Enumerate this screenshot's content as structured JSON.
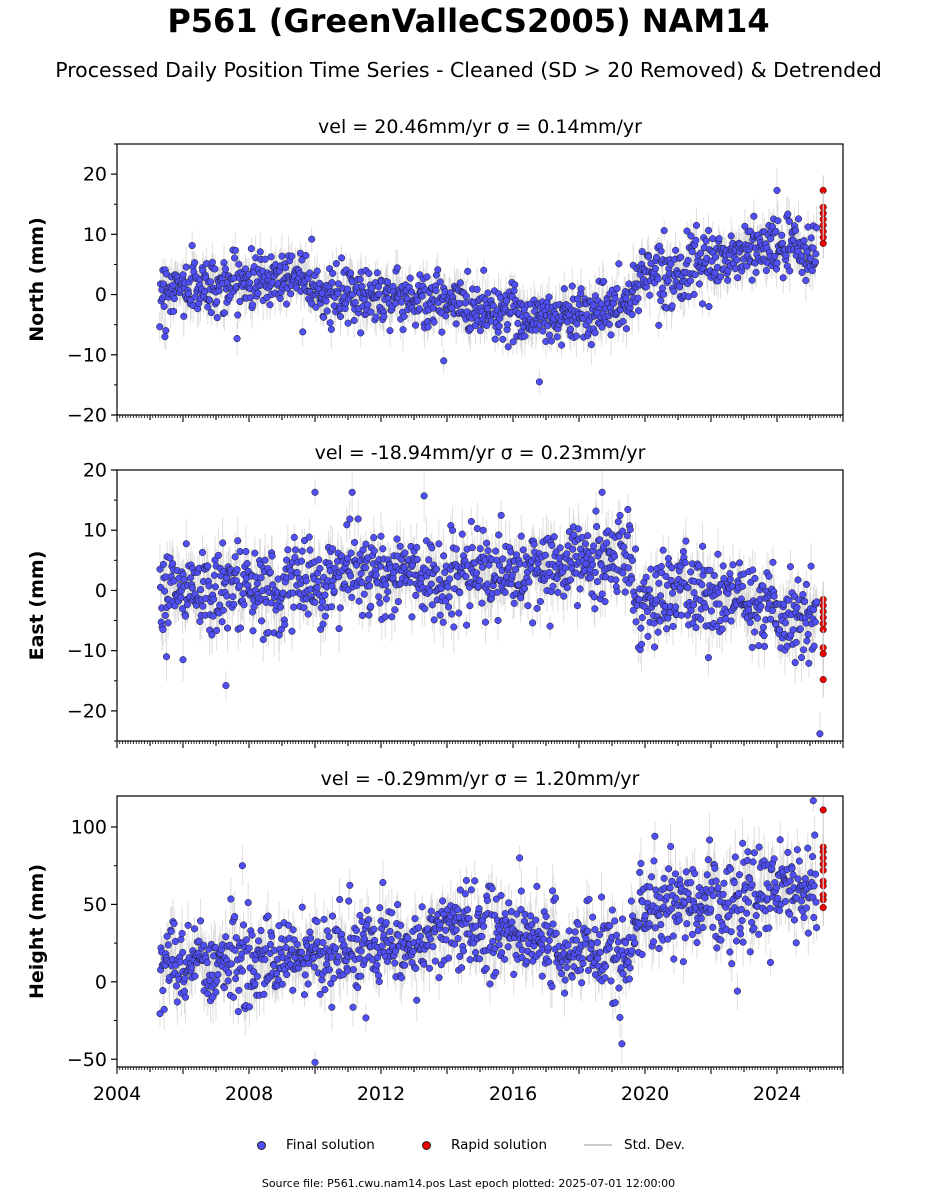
{
  "title": "P561 (GreenValleCS2005) NAM14",
  "subtitle": "Processed Daily Position Time Series - Cleaned (SD > 20 Removed) & Detrended",
  "legend": {
    "final": "Final solution",
    "rapid": "Rapid solution",
    "std": "Std. Dev."
  },
  "footer": "Source file: P561.cwu.nam14.pos  Last epoch plotted: 2025-07-01 12:00:00",
  "colors": {
    "final": "#4f4ff5",
    "rapid": "#ee0000",
    "std": "#c8c8c8"
  },
  "chart_data": [
    {
      "type": "scatter",
      "component": "North",
      "title": "vel = 20.46mm/yr   σ = 0.14mm/yr",
      "ylabel": "North (mm)",
      "xlim": [
        2004.0,
        2026.0
      ],
      "ylim": [
        -20,
        25
      ],
      "yticks": [
        -20,
        -10,
        0,
        10,
        20
      ],
      "ytick_labels": [
        "−20",
        "−10",
        "0",
        "10",
        "20"
      ],
      "grid": false,
      "final_solution_trend": [
        {
          "x": 2005.3,
          "y": 1.0
        },
        {
          "x": 2007.0,
          "y": 1.5
        },
        {
          "x": 2009.0,
          "y": 3.0
        },
        {
          "x": 2009.7,
          "y": 3.5
        },
        {
          "x": 2010.3,
          "y": -0.5
        },
        {
          "x": 2012.0,
          "y": 0.0
        },
        {
          "x": 2014.0,
          "y": -1.5
        },
        {
          "x": 2016.0,
          "y": -3.0
        },
        {
          "x": 2017.0,
          "y": -4.0
        },
        {
          "x": 2018.0,
          "y": -3.0
        },
        {
          "x": 2019.5,
          "y": -2.0
        },
        {
          "x": 2019.9,
          "y": 4.0
        },
        {
          "x": 2021.0,
          "y": 3.5
        },
        {
          "x": 2022.0,
          "y": 5.0
        },
        {
          "x": 2023.0,
          "y": 7.0
        },
        {
          "x": 2024.0,
          "y": 8.0
        },
        {
          "x": 2025.2,
          "y": 7.0
        }
      ],
      "final_solution_scatter_sd": 2.3,
      "std_dev_mm": 2.5,
      "outliers": [
        {
          "x": 2005.45,
          "y": -7.0
        },
        {
          "x": 2013.9,
          "y": -11.0
        },
        {
          "x": 2016.8,
          "y": -14.5
        },
        {
          "x": 2024.0,
          "y": 17.3
        },
        {
          "x": 2009.9,
          "y": 9.2
        },
        {
          "x": 2023.3,
          "y": 13.0
        }
      ],
      "rapid_solution": [
        {
          "x": 2025.4,
          "y": 17.3
        },
        {
          "x": 2025.4,
          "y": 14.5
        },
        {
          "x": 2025.4,
          "y": 13.5
        },
        {
          "x": 2025.4,
          "y": 12.5
        },
        {
          "x": 2025.4,
          "y": 11.5
        },
        {
          "x": 2025.4,
          "y": 10.5
        },
        {
          "x": 2025.4,
          "y": 9.5
        },
        {
          "x": 2025.4,
          "y": 8.5
        }
      ]
    },
    {
      "type": "scatter",
      "component": "East",
      "title": "vel = -18.94mm/yr   σ = 0.23mm/yr",
      "ylabel": "East (mm)",
      "xlim": [
        2004.0,
        2026.0
      ],
      "ylim": [
        -25,
        20
      ],
      "yticks": [
        -20,
        -10,
        0,
        10,
        20
      ],
      "ytick_labels": [
        "−20",
        "−10",
        "0",
        "10",
        "20"
      ],
      "grid": false,
      "final_solution_trend": [
        {
          "x": 2005.3,
          "y": 1.0
        },
        {
          "x": 2007.0,
          "y": 0.5
        },
        {
          "x": 2008.5,
          "y": -1.0
        },
        {
          "x": 2010.0,
          "y": 2.0
        },
        {
          "x": 2012.0,
          "y": 3.0
        },
        {
          "x": 2014.0,
          "y": 2.0
        },
        {
          "x": 2016.0,
          "y": 2.5
        },
        {
          "x": 2018.0,
          "y": 4.0
        },
        {
          "x": 2019.5,
          "y": 6.0
        },
        {
          "x": 2019.8,
          "y": -2.0
        },
        {
          "x": 2021.0,
          "y": -0.5
        },
        {
          "x": 2022.5,
          "y": -1.0
        },
        {
          "x": 2024.0,
          "y": -4.0
        },
        {
          "x": 2025.2,
          "y": -6.0
        }
      ],
      "final_solution_scatter_sd": 3.5,
      "std_dev_mm": 3.0,
      "outliers": [
        {
          "x": 2010.0,
          "y": 16.3
        },
        {
          "x": 2018.7,
          "y": 16.3
        },
        {
          "x": 2025.3,
          "y": -23.8
        },
        {
          "x": 2007.3,
          "y": -15.8
        },
        {
          "x": 2006.0,
          "y": -11.5
        },
        {
          "x": 2005.5,
          "y": -11.0
        }
      ],
      "rapid_solution": [
        {
          "x": 2025.4,
          "y": -1.5
        },
        {
          "x": 2025.4,
          "y": -2.5
        },
        {
          "x": 2025.4,
          "y": -3.5
        },
        {
          "x": 2025.4,
          "y": -4.5
        },
        {
          "x": 2025.4,
          "y": -5.5
        },
        {
          "x": 2025.4,
          "y": -6.5
        },
        {
          "x": 2025.4,
          "y": -9.5
        },
        {
          "x": 2025.4,
          "y": -10.5
        },
        {
          "x": 2025.4,
          "y": -14.8
        }
      ]
    },
    {
      "type": "scatter",
      "component": "Height",
      "title": "vel = -0.29mm/yr   σ = 1.20mm/yr",
      "ylabel": "Height (mm)",
      "xlim": [
        2004.0,
        2026.0
      ],
      "ylim": [
        -55,
        120
      ],
      "yticks": [
        -50,
        0,
        50,
        100
      ],
      "ytick_labels": [
        "−50",
        "0",
        "50",
        "100"
      ],
      "grid": false,
      "xticks": [
        2004,
        2008,
        2012,
        2016,
        2020,
        2024
      ],
      "xtick_labels": [
        "2004",
        "2008",
        "2012",
        "2016",
        "2020",
        "2024"
      ],
      "final_solution_trend": [
        {
          "x": 2005.3,
          "y": 10
        },
        {
          "x": 2007.0,
          "y": 12
        },
        {
          "x": 2009.0,
          "y": 15
        },
        {
          "x": 2011.0,
          "y": 18
        },
        {
          "x": 2013.0,
          "y": 25
        },
        {
          "x": 2014.5,
          "y": 38
        },
        {
          "x": 2016.0,
          "y": 28
        },
        {
          "x": 2018.0,
          "y": 22
        },
        {
          "x": 2019.5,
          "y": 15
        },
        {
          "x": 2019.9,
          "y": 45
        },
        {
          "x": 2021.5,
          "y": 50
        },
        {
          "x": 2023.0,
          "y": 55
        },
        {
          "x": 2024.5,
          "y": 62
        },
        {
          "x": 2025.2,
          "y": 65
        }
      ],
      "final_solution_scatter_sd": 14,
      "std_dev_mm": 12,
      "outliers": [
        {
          "x": 2007.8,
          "y": 75
        },
        {
          "x": 2010.0,
          "y": -52
        },
        {
          "x": 2016.2,
          "y": 80
        },
        {
          "x": 2019.3,
          "y": -40
        },
        {
          "x": 2020.3,
          "y": 94
        },
        {
          "x": 2025.1,
          "y": 117
        },
        {
          "x": 2022.8,
          "y": -6
        }
      ],
      "rapid_solution": [
        {
          "x": 2025.4,
          "y": 111
        },
        {
          "x": 2025.4,
          "y": 87
        },
        {
          "x": 2025.4,
          "y": 84
        },
        {
          "x": 2025.4,
          "y": 80
        },
        {
          "x": 2025.4,
          "y": 76
        },
        {
          "x": 2025.4,
          "y": 72
        },
        {
          "x": 2025.4,
          "y": 65
        },
        {
          "x": 2025.4,
          "y": 62
        },
        {
          "x": 2025.4,
          "y": 56
        },
        {
          "x": 2025.4,
          "y": 53
        },
        {
          "x": 2025.4,
          "y": 48
        }
      ]
    }
  ]
}
